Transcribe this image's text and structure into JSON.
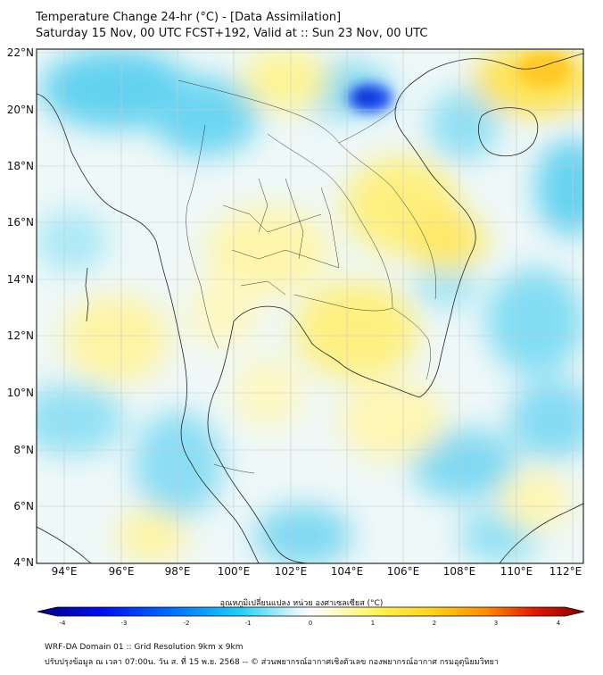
{
  "title": {
    "line1": "Temperature Change 24-hr (°C) - [Data Assimilation]",
    "line2": "Saturday 15 Nov, 00 UTC FCST+192, Valid at :: Sun 23 Nov, 00 UTC"
  },
  "map": {
    "lat_labels": [
      "22°N",
      "20°N",
      "18°N",
      "16°N",
      "14°N",
      "12°N",
      "10°N",
      "8°N",
      "6°N",
      "4°N"
    ],
    "lon_labels": [
      "94°E",
      "96°E",
      "98°E",
      "100°E",
      "102°E",
      "104°E",
      "106°E",
      "108°E",
      "110°E",
      "112°E"
    ],
    "extent": {
      "lon_min": 93,
      "lon_max": 112.4,
      "lat_min": 4,
      "lat_max": 22.2
    },
    "field_highlights": [
      {
        "name": "cold core northern Laos / Vietnam",
        "lon": 104.8,
        "lat": 20.6,
        "value": -3.0
      },
      {
        "name": "warm Hainan / Gulf of Tonkin",
        "lon": 110.0,
        "lat": 21.2,
        "value": 1.5
      },
      {
        "name": "warm central Vietnam",
        "lon": 107.5,
        "lat": 16.2,
        "value": 1.2
      },
      {
        "name": "warm Cambodia",
        "lon": 104.5,
        "lat": 12.8,
        "value": 1.1
      }
    ]
  },
  "colorbar": {
    "title": "อุณหภูมิเปลี่ยนแปลง หน่วย องศาเซลเซียส (°C)",
    "min": -4,
    "max": 4,
    "ticks": [
      "-4",
      "-3",
      "-2",
      "-1",
      "0",
      "1",
      "2",
      "3",
      "4"
    ],
    "colors": [
      "#00007f",
      "#0000ff",
      "#0080ff",
      "#1fd6f4",
      "#e9fbff",
      "#ffffff",
      "#fffde0",
      "#fff34a",
      "#ffbf00",
      "#ff6a00",
      "#d40000",
      "#7f0000"
    ]
  },
  "footer": {
    "line1": "WRF-DA Domain 01 :: Grid Resolution 9km x 9km",
    "line2": "ปรับปรุงข้อมูล ณ เวลา 07:00น. วัน ส. ที่ 15 พ.ย. 2568 -- © ส่วนพยากรณ์อากาศเชิงตัวเลข กองพยากรณ์อากาศ กรมอุตุนิยมวิทยา"
  }
}
